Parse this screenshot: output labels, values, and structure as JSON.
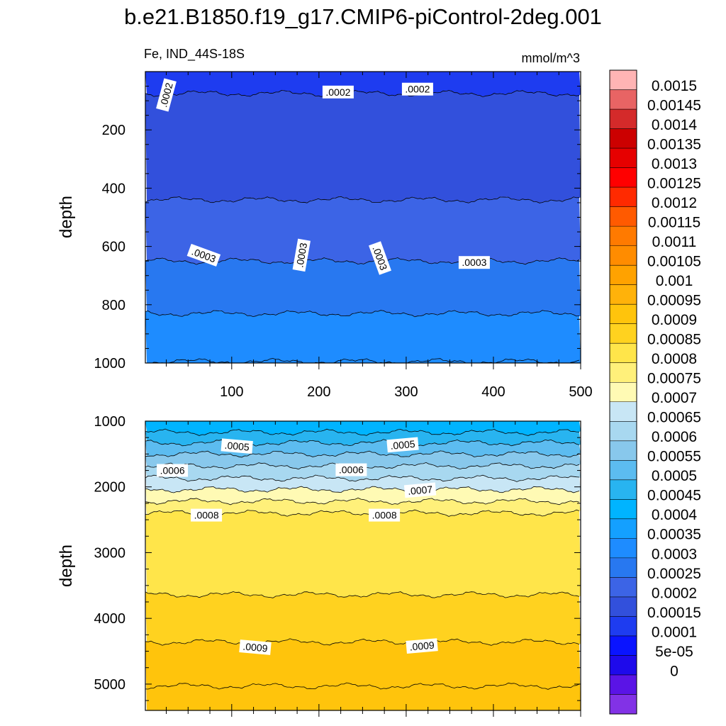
{
  "title": "b.e21.B1850.f19_g17.CMIP6-piControl-2deg.001",
  "chart_data": {
    "type": "contour",
    "variable_label": "Fe, IND_44S-18S",
    "units_label": "mmol/m^3",
    "ylabel": "depth",
    "panels": [
      {
        "name": "upper",
        "ylim": [
          0,
          1000
        ],
        "y_reversed": true,
        "xlim": [
          1,
          500
        ],
        "xticks": [
          100,
          200,
          300,
          400,
          500
        ],
        "yticks": [
          200,
          400,
          600,
          800,
          1000
        ],
        "contour_lines": [
          {
            "level": 0.00015,
            "depth": 75
          },
          {
            "level": 0.0002,
            "depth": 440
          },
          {
            "level": 0.00025,
            "depth": 650
          },
          {
            "level": 0.0003,
            "depth": 830
          },
          {
            "level": 0.00035,
            "depth": 995
          }
        ],
        "fill_bands": [
          {
            "from_depth": 0,
            "to_depth": 75,
            "level": 0.00015
          },
          {
            "from_depth": 75,
            "to_depth": 440,
            "level": 0.0002
          },
          {
            "from_depth": 440,
            "to_depth": 650,
            "level": 0.00025
          },
          {
            "from_depth": 650,
            "to_depth": 830,
            "level": 0.0003
          },
          {
            "from_depth": 830,
            "to_depth": 1000,
            "level": 0.00035
          }
        ],
        "contour_labels": [
          {
            "text": ".0002",
            "x": 25,
            "depth": 80,
            "angle": -75
          },
          {
            "text": ".0002",
            "x": 222,
            "depth": 70,
            "angle": 0
          },
          {
            "text": ".0002",
            "x": 313,
            "depth": 60,
            "angle": 0
          },
          {
            "text": ".0003",
            "x": 68,
            "depth": 630,
            "angle": 20
          },
          {
            "text": ".0003",
            "x": 180,
            "depth": 630,
            "angle": -80
          },
          {
            "text": ".0003",
            "x": 270,
            "depth": 640,
            "angle": 70
          },
          {
            "text": ".0003",
            "x": 378,
            "depth": 655,
            "angle": 0
          }
        ]
      },
      {
        "name": "lower",
        "ylim": [
          1000,
          5400
        ],
        "y_reversed": true,
        "xlim": [
          1,
          500
        ],
        "yticks": [
          1000,
          2000,
          3000,
          4000,
          5000
        ],
        "contour_lines": [
          {
            "level": 0.0004,
            "depth": 1170
          },
          {
            "level": 0.00045,
            "depth": 1330
          },
          {
            "level": 0.0005,
            "depth": 1500
          },
          {
            "level": 0.00055,
            "depth": 1680
          },
          {
            "level": 0.0006,
            "depth": 1870
          },
          {
            "level": 0.00065,
            "depth": 2040
          },
          {
            "level": 0.0007,
            "depth": 2220
          },
          {
            "level": 0.00075,
            "depth": 2400
          },
          {
            "level": 0.0008,
            "depth": 3640
          },
          {
            "level": 0.00085,
            "depth": 4360
          },
          {
            "level": 0.0009,
            "depth": 5030
          }
        ],
        "fill_bands": [
          {
            "from_depth": 1000,
            "to_depth": 1170,
            "level": 0.00045
          },
          {
            "from_depth": 1170,
            "to_depth": 1330,
            "level": 0.0005
          },
          {
            "from_depth": 1330,
            "to_depth": 1500,
            "level": 0.00055
          },
          {
            "from_depth": 1500,
            "to_depth": 1680,
            "level": 0.0006
          },
          {
            "from_depth": 1680,
            "to_depth": 1870,
            "level": 0.00065
          },
          {
            "from_depth": 1870,
            "to_depth": 2040,
            "level": 0.0007
          },
          {
            "from_depth": 2040,
            "to_depth": 2220,
            "level": 0.00075
          },
          {
            "from_depth": 2220,
            "to_depth": 2400,
            "level": 0.0008
          },
          {
            "from_depth": 2400,
            "to_depth": 3640,
            "level": 0.00085
          },
          {
            "from_depth": 3640,
            "to_depth": 4360,
            "level": 0.0009
          },
          {
            "from_depth": 4360,
            "to_depth": 5400,
            "level": 0.00095
          }
        ],
        "contour_labels": [
          {
            "text": ".0005",
            "x": 106,
            "depth": 1380,
            "angle": 5
          },
          {
            "text": ".0005",
            "x": 296,
            "depth": 1360,
            "angle": -5
          },
          {
            "text": ".0006",
            "x": 32,
            "depth": 1750,
            "angle": 0
          },
          {
            "text": ".0006",
            "x": 237,
            "depth": 1740,
            "angle": 0
          },
          {
            "text": ".0007",
            "x": 316,
            "depth": 2050,
            "angle": -5
          },
          {
            "text": ".0008",
            "x": 71,
            "depth": 2430,
            "angle": 0
          },
          {
            "text": ".0008",
            "x": 275,
            "depth": 2430,
            "angle": 0
          },
          {
            "text": ".0009",
            "x": 127,
            "depth": 4440,
            "angle": 5
          },
          {
            "text": ".0009",
            "x": 318,
            "depth": 4420,
            "angle": -5
          }
        ]
      }
    ],
    "colorbar": {
      "labels": [
        "0.0015",
        "0.00145",
        "0.0014",
        "0.00135",
        "0.0013",
        "0.00125",
        "0.0012",
        "0.00115",
        "0.0011",
        "0.00105",
        "0.001",
        "0.00095",
        "0.0009",
        "0.00085",
        "0.0008",
        "0.00075",
        "0.0007",
        "0.00065",
        "0.0006",
        "0.00055",
        "0.0005",
        "0.00045",
        "0.0004",
        "0.00035",
        "0.0003",
        "0.00025",
        "0.0002",
        "0.00015",
        "0.0001",
        "5e-05",
        "0"
      ],
      "colors": [
        "#ffb4b4",
        "#e86464",
        "#d42a2a",
        "#cc0000",
        "#e60000",
        "#ff0000",
        "#ff2a00",
        "#ff5a00",
        "#ff7a00",
        "#ff8c00",
        "#ffa200",
        "#ffb20a",
        "#ffc40c",
        "#ffd21f",
        "#ffe54a",
        "#fff07a",
        "#fffab4",
        "#c8e6f5",
        "#a8d8f0",
        "#88c8ec",
        "#5cbcf0",
        "#28b4f0",
        "#00b4ff",
        "#14a0ff",
        "#1e8cff",
        "#2878f0",
        "#3c64e6",
        "#3250dc",
        "#1e3cf0",
        "#0a14ff",
        "#1e0aeb",
        "#5a14e6",
        "#8232e6"
      ]
    }
  }
}
